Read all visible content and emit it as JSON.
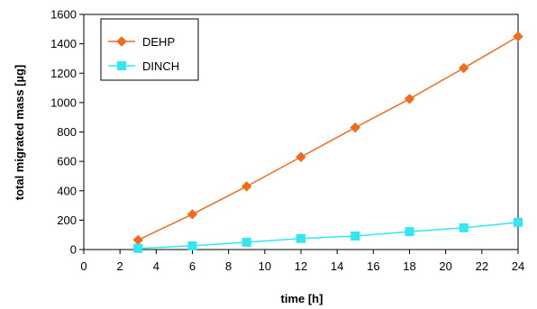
{
  "chart_data": {
    "type": "line",
    "xlabel": "time [h]",
    "ylabel": "total migrated mass [µg]",
    "xlim": [
      0,
      24
    ],
    "ylim": [
      0,
      1600
    ],
    "xticks": [
      0,
      2,
      4,
      6,
      8,
      10,
      12,
      14,
      16,
      18,
      20,
      22,
      24
    ],
    "yticks": [
      0,
      200,
      400,
      600,
      800,
      1000,
      1200,
      1400,
      1600
    ],
    "grid": false,
    "legend": "top-left",
    "series": [
      {
        "name": "DEHP",
        "color": "#F26B1D",
        "marker": "diamond",
        "x": [
          3,
          6,
          9,
          12,
          15,
          18,
          21,
          24
        ],
        "values": [
          65,
          240,
          430,
          630,
          830,
          1025,
          1235,
          1450
        ]
      },
      {
        "name": "DINCH",
        "color": "#33E6F0",
        "marker": "square",
        "x": [
          3,
          6,
          9,
          12,
          15,
          18,
          21,
          24
        ],
        "values": [
          8,
          25,
          50,
          75,
          92,
          122,
          148,
          185
        ]
      }
    ]
  }
}
